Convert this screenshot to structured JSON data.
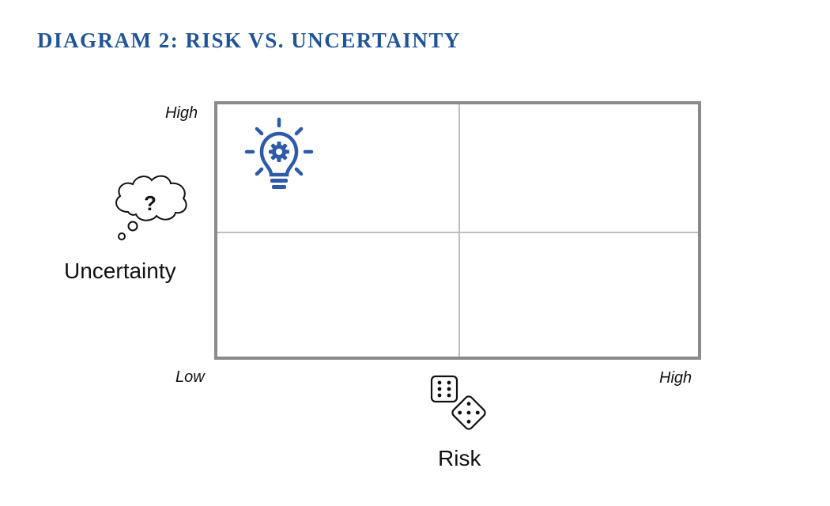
{
  "title": "DIAGRAM 2: RISK VS. UNCERTAINTY",
  "y_axis": {
    "label": "Uncertainty",
    "high_tick": "High"
  },
  "x_axis": {
    "label": "Risk",
    "low_tick": "Low",
    "high_tick": "High"
  },
  "quadrant_icon": "lightbulb-gear-icon",
  "y_axis_icon": "thought-cloud-question-icon",
  "x_axis_icon": "dice-icon",
  "colors": {
    "title": "#1f5497",
    "icon_accent": "#2f5aa8",
    "grid_border": "#8a8a8a",
    "grid_lines": "#bdbdbd"
  }
}
